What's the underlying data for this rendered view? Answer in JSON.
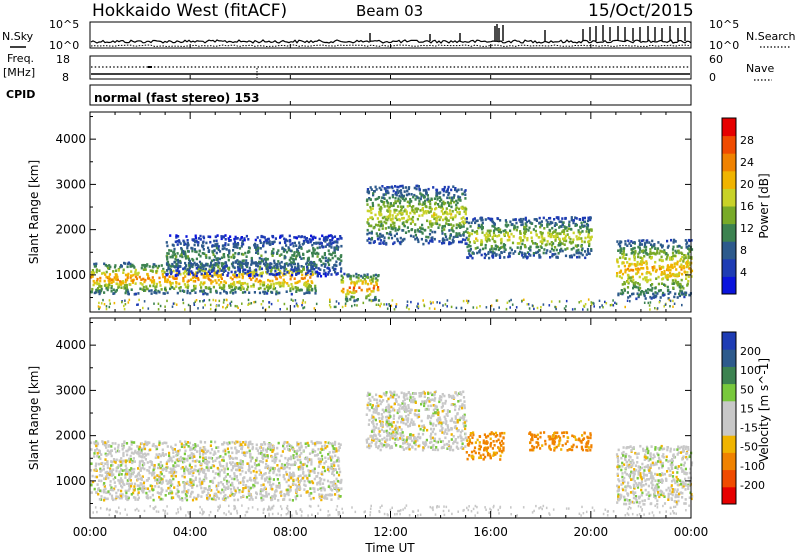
{
  "header": {
    "title": "Hokkaido West (fitACF)",
    "beam": "Beam 03",
    "date": "15/Oct/2015"
  },
  "noise_panel": {
    "left_label": "N.Sky",
    "right_label": "N.Search",
    "left_ticks": [
      "10^5",
      "10^0"
    ],
    "right_ticks": [
      "10^5",
      "10^0"
    ]
  },
  "freq_panel": {
    "left_label_1": "Freq.",
    "left_label_2": "[MHz]",
    "right_label": "Nave",
    "left_ticks": [
      "18",
      "8"
    ],
    "right_ticks": [
      "60",
      "0"
    ]
  },
  "cpid_panel": {
    "label": "CPID",
    "text": "normal (fast stereo) 153"
  },
  "x_axis": {
    "label": "Time UT",
    "ticks": [
      "00:00",
      "04:00",
      "08:00",
      "12:00",
      "16:00",
      "20:00",
      "00:00"
    ]
  },
  "colors": {
    "power": [
      "#0a14dc",
      "#1e3cb4",
      "#2d5a8c",
      "#3c8250",
      "#78aa28",
      "#c8d228",
      "#f0b400",
      "#f08200",
      "#f04b00",
      "#e60000"
    ],
    "velocity": [
      "#e60000",
      "#f04b00",
      "#f08200",
      "#f0b400",
      "#c8c8c8",
      "#c8c8c8",
      "#78c83c",
      "#3c8250",
      "#2d5a8c",
      "#1e3cb4"
    ]
  },
  "chart_data": [
    {
      "type": "heatmap",
      "title": "Power",
      "ylabel": "Slant Range [km]",
      "ylim": [
        180,
        4600
      ],
      "yticks": [
        "1000",
        "2000",
        "3000",
        "4000"
      ],
      "xlim_hours": [
        0,
        24
      ],
      "colorbar": {
        "label": "Power [dB]",
        "ticks": [
          "4",
          "8",
          "12",
          "16",
          "20",
          "24",
          "28"
        ],
        "range": [
          0,
          32
        ]
      },
      "echo_regions": [
        {
          "start": "00:00",
          "end": "09:00",
          "range_start_km": 600,
          "range_end_km": 1300,
          "peak_power_db": 26
        },
        {
          "start": "03:00",
          "end": "10:00",
          "range_start_km": 1000,
          "range_end_km": 1900,
          "peak_power_db": 14
        },
        {
          "start": "10:00",
          "end": "11:30",
          "range_start_km": 450,
          "range_end_km": 1050,
          "peak_power_db": 28
        },
        {
          "start": "11:00",
          "end": "15:00",
          "range_start_km": 1700,
          "range_end_km": 3000,
          "peak_power_db": 20
        },
        {
          "start": "15:00",
          "end": "20:00",
          "range_start_km": 1400,
          "range_end_km": 2300,
          "peak_power_db": 20
        },
        {
          "start": "21:00",
          "end": "24:00",
          "range_start_km": 500,
          "range_end_km": 1800,
          "peak_power_db": 24
        }
      ]
    },
    {
      "type": "heatmap",
      "title": "Velocity",
      "ylabel": "Slant Range [km]",
      "ylim": [
        180,
        4600
      ],
      "yticks": [
        "1000",
        "2000",
        "3000",
        "4000"
      ],
      "xlim_hours": [
        0,
        24
      ],
      "colorbar": {
        "label": "Velocity [m s^-1]",
        "ticks": [
          "-200",
          "-100",
          "-50",
          "-15",
          "15",
          "50",
          "100",
          "200"
        ],
        "range": [
          -250,
          250
        ]
      },
      "echo_regions": [
        {
          "start": "00:00",
          "end": "10:00",
          "range_start_km": 600,
          "range_end_km": 1900,
          "velocity_ms": 0
        },
        {
          "start": "11:00",
          "end": "15:00",
          "range_start_km": 1700,
          "range_end_km": 3000,
          "velocity_ms": 0
        },
        {
          "start": "15:00",
          "end": "16:30",
          "range_start_km": 1500,
          "range_end_km": 2100,
          "velocity_ms": -60
        },
        {
          "start": "17:30",
          "end": "20:00",
          "range_start_km": 1700,
          "range_end_km": 2100,
          "velocity_ms": -60
        },
        {
          "start": "21:00",
          "end": "24:00",
          "range_start_km": 500,
          "range_end_km": 1800,
          "velocity_ms": 0
        }
      ]
    }
  ]
}
